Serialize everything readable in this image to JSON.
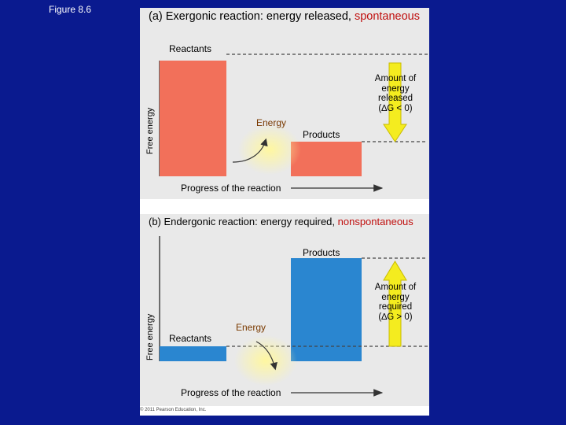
{
  "figure_label": "Figure 8.6",
  "panel_a": {
    "title_prefix": "(a) Exergonic reaction: energy released, ",
    "title_highlight": "spontaneous",
    "reactants_label": "Reactants",
    "products_label": "Products",
    "energy_label": "Energy",
    "y_axis_label": "Free energy",
    "x_axis_label": "Progress of the reaction",
    "amount_lines": [
      "Amount of",
      "energy",
      "released",
      "(∆G < 0)"
    ]
  },
  "panel_b": {
    "title_prefix": "(b) Endergonic reaction: energy required, ",
    "title_highlight": "nonspontaneous",
    "reactants_label": "Reactants",
    "products_label": "Products",
    "energy_label": "Energy",
    "y_axis_label": "Free energy",
    "x_axis_label": "Progress of the reaction",
    "amount_lines": [
      "Amount of",
      "energy",
      "required",
      "(∆G > 0)"
    ]
  },
  "copyright": "© 2011 Pearson Education, Inc.",
  "colors": {
    "background": "#0a1a8f",
    "reactant_bar_a": "#f2705a",
    "product_bar_b": "#2a86d0",
    "arrow_yellow": "#f4ec1f",
    "highlight_text": "#c0100f"
  }
}
